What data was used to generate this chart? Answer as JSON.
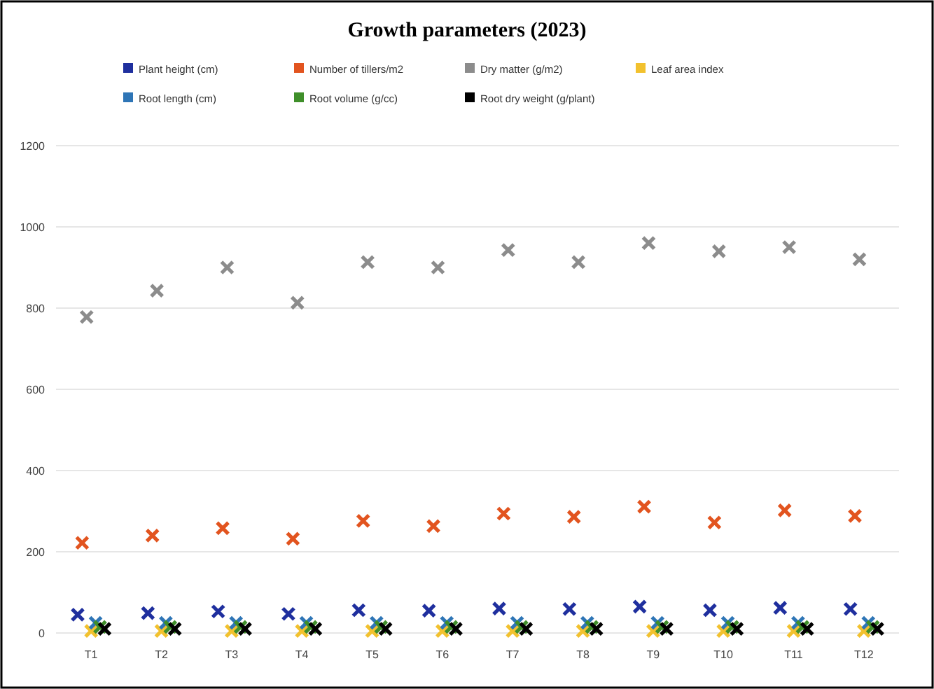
{
  "chart_data": {
    "type": "scatter",
    "title": "Growth parameters (2023)",
    "categories": [
      "T1",
      "T2",
      "T3",
      "T4",
      "T5",
      "T6",
      "T7",
      "T8",
      "T9",
      "T10",
      "T11",
      "T12"
    ],
    "series": [
      {
        "name": "Plant height (cm)",
        "color": "#1f2f9e",
        "values": [
          45,
          49,
          53,
          47,
          56,
          55,
          60,
          59,
          65,
          56,
          62,
          59
        ]
      },
      {
        "name": "Number of tillers/m2",
        "color": "#e2541f",
        "values": [
          222,
          240,
          258,
          232,
          276,
          263,
          294,
          286,
          311,
          272,
          302,
          288
        ]
      },
      {
        "name": "Dry matter (g/m2)",
        "color": "#8c8c8c",
        "values": [
          778,
          843,
          900,
          813,
          913,
          900,
          943,
          913,
          960,
          940,
          950,
          920
        ]
      },
      {
        "name": "Leaf area index",
        "color": "#f2c12e",
        "values": [
          5,
          5,
          5,
          5,
          5,
          5,
          5,
          5,
          5,
          5,
          5,
          5
        ]
      },
      {
        "name": "Root length (cm)",
        "color": "#2e75b6",
        "values": [
          25,
          25,
          25,
          25,
          25,
          25,
          25,
          25,
          25,
          25,
          25,
          25
        ]
      },
      {
        "name": "Root volume (g/cc)",
        "color": "#3f8f2a",
        "values": [
          15,
          15,
          15,
          15,
          15,
          15,
          15,
          15,
          15,
          15,
          15,
          15
        ]
      },
      {
        "name": "Root dry weight (g/plant)",
        "color": "#000000",
        "values": [
          10,
          10,
          10,
          10,
          10,
          10,
          10,
          10,
          10,
          10,
          10,
          10
        ]
      }
    ],
    "ylim": [
      0,
      1200
    ],
    "yticks": [
      0,
      200,
      400,
      600,
      800,
      1000,
      1200
    ],
    "grid": "y",
    "legend": "top",
    "marker": "cross"
  }
}
